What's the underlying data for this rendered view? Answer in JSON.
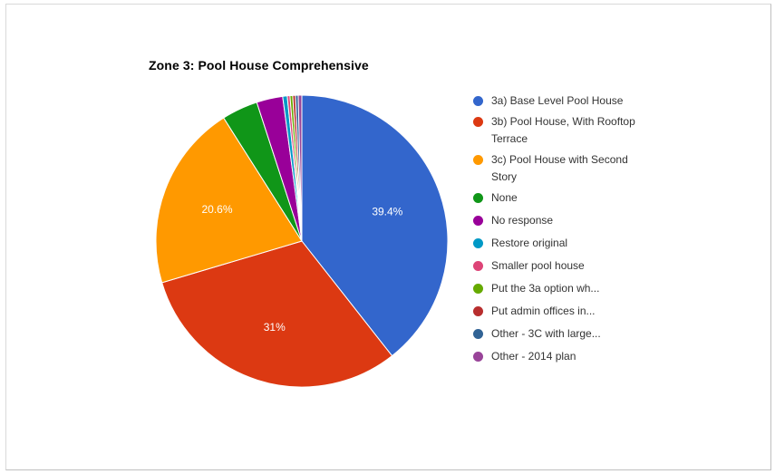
{
  "chart_data": {
    "type": "pie",
    "title": "Zone 3: Pool House Comprehensive",
    "legend_position": "right",
    "slices": [
      {
        "label": "3a) Base Level Pool House",
        "legend_label": "3a) Base Level Pool House",
        "value": 39.4,
        "display": "39.4%",
        "color": "#3366cc"
      },
      {
        "label": "3b) Pool House, With Rooftop Terrace",
        "legend_label": "3b) Pool House, With Rooftop Terrace",
        "value": 31.0,
        "display": "31%",
        "color": "#dc3912"
      },
      {
        "label": "3c) Pool House with Second Story",
        "legend_label": "3c) Pool House with Second Story",
        "value": 20.6,
        "display": "20.6%",
        "color": "#ff9900"
      },
      {
        "label": "None",
        "legend_label": "None",
        "value": 4.0,
        "display": "",
        "color": "#109618"
      },
      {
        "label": "No response",
        "legend_label": "No response",
        "value": 2.9,
        "display": "",
        "color": "#990099"
      },
      {
        "label": "Restore original",
        "legend_label": "Restore original",
        "value": 0.5,
        "display": "",
        "color": "#0099c6"
      },
      {
        "label": "Smaller pool house",
        "legend_label": "Smaller pool house",
        "value": 0.3,
        "display": "",
        "color": "#dd4477"
      },
      {
        "label": "Put the 3a option wh...",
        "legend_label": "Put the 3a option wh...",
        "value": 0.3,
        "display": "",
        "color": "#66aa00"
      },
      {
        "label": "Put admin offices in...",
        "legend_label": "Put admin offices in...",
        "value": 0.3,
        "display": "",
        "color": "#b82e2e"
      },
      {
        "label": "Other - 3C with large...",
        "legend_label": "Other - 3C with large...",
        "value": 0.3,
        "display": "",
        "color": "#316395"
      },
      {
        "label": "Other - 2014 plan",
        "legend_label": "Other - 2014 plan",
        "value": 0.4,
        "display": "",
        "color": "#994499"
      }
    ]
  }
}
